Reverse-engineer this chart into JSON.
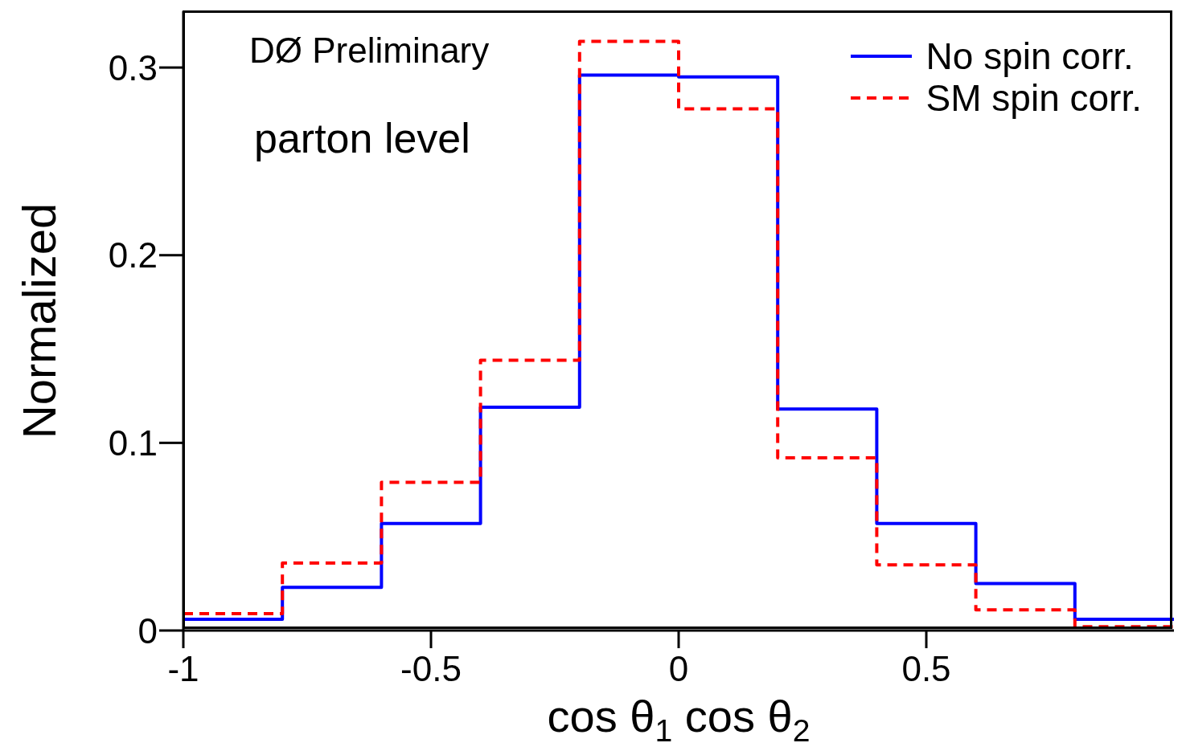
{
  "chart_data": {
    "type": "histogram",
    "xlabel": "cos θ$_{1}$ cos θ$_{2}$",
    "ylabel": "Normalized",
    "annotations": [
      "DØ Preliminary",
      "parton level"
    ],
    "bins": [
      -1,
      -0.8,
      -0.6,
      -0.4,
      -0.2,
      0,
      0.2,
      0.4,
      0.6,
      0.8,
      1
    ],
    "series": [
      {
        "name": "No spin corr.",
        "color": "#0000ff",
        "line_style": "solid",
        "values": [
          0.006,
          0.023,
          0.057,
          0.119,
          0.296,
          0.295,
          0.118,
          0.057,
          0.025,
          0.006
        ]
      },
      {
        "name": "SM spin corr.",
        "color": "#ff0000",
        "line_style": "dashed",
        "values": [
          0.009,
          0.036,
          0.079,
          0.144,
          0.314,
          0.278,
          0.092,
          0.035,
          0.011,
          0.002
        ]
      }
    ],
    "xlim": [
      -1,
      1
    ],
    "xticks": [
      -1,
      -0.5,
      0,
      0.5
    ],
    "ylim": [
      0,
      0.33
    ],
    "yticks": [
      0,
      0.1,
      0.2,
      0.3
    ],
    "grid": false,
    "legend": "top right"
  }
}
